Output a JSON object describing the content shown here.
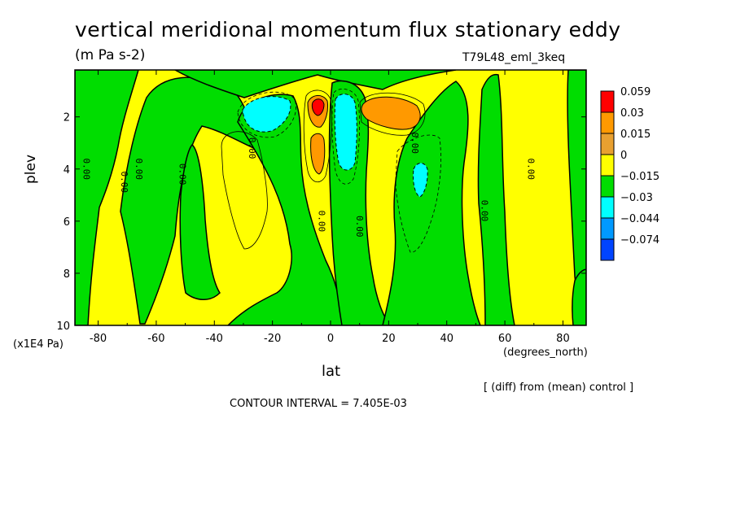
{
  "chart_data": {
    "type": "contour",
    "title": "vertical meridional momentum flux stationary eddy",
    "subtitle": "(m Pa s-2)",
    "run": "T79L48_eml_3keq",
    "xlabel": "lat",
    "xunits": "(degrees_north)",
    "ylabel": "plev",
    "yunits": "(x1E4 Pa)",
    "xlim": [
      -88,
      88
    ],
    "ylim": [
      0.2,
      10
    ],
    "y_inverted": true,
    "x_ticks": [
      -80,
      -60,
      -40,
      -20,
      0,
      20,
      40,
      60,
      80
    ],
    "y_ticks": [
      2,
      4,
      6,
      8,
      10
    ],
    "contour_interval_label": "CONTOUR INTERVAL = 7.405E-03",
    "note": "[ (diff) from (mean) control ]",
    "zero_contour_label": "0.00",
    "legend": {
      "levels": [
        "0.059",
        "0.03",
        "0.015",
        "0",
        "−0.015",
        "−0.03",
        "−0.044",
        "−0.074"
      ],
      "colors": [
        "#ff0000",
        "#ff9900",
        "#e8a030",
        "#ffff00",
        "#00dd00",
        "#00ffff",
        "#0099ff",
        "#0044ff"
      ]
    },
    "features": [
      {
        "kind": "positive_max",
        "lat": -5,
        "plev": 1.6,
        "level": "0.059"
      },
      {
        "kind": "positive",
        "lat": -4,
        "plev": 3.0,
        "level": "0.015"
      },
      {
        "kind": "negative",
        "lat": -22,
        "plev": 2.0,
        "level": "-0.03"
      },
      {
        "kind": "negative",
        "lat": 5,
        "plev": 2.2,
        "level": "-0.03"
      },
      {
        "kind": "positive",
        "lat": 22,
        "plev": 2.0,
        "level": "0.03"
      },
      {
        "kind": "negative",
        "lat": 30,
        "plev": 4.3,
        "level": "-0.03"
      }
    ]
  }
}
